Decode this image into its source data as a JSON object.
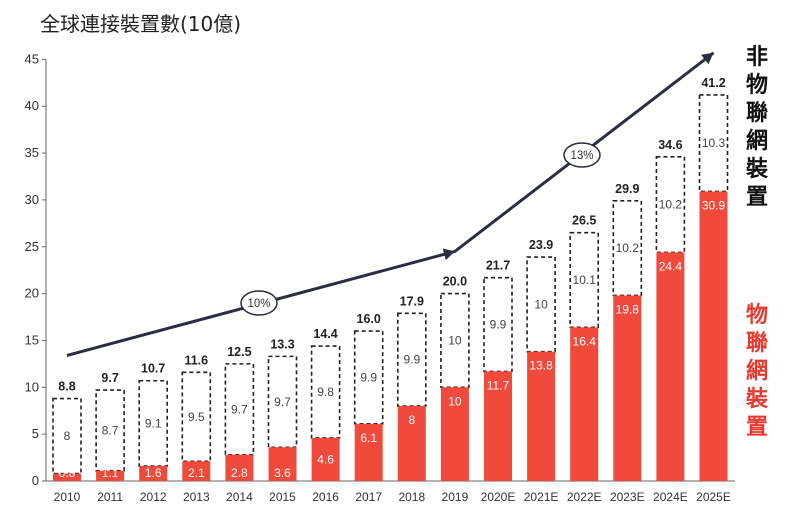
{
  "chart_data": {
    "type": "bar",
    "title": "全球連接裝置數(10億)",
    "categories": [
      "2010",
      "2011",
      "2012",
      "2013",
      "2014",
      "2015",
      "2016",
      "2017",
      "2018",
      "2019",
      "2020E",
      "2021E",
      "2022E",
      "2023E",
      "2024E",
      "2025E"
    ],
    "series": [
      {
        "name": "物聯網裝置",
        "color": "#f04a3c",
        "values": [
          0.8,
          1.1,
          1.6,
          2.1,
          2.8,
          3.6,
          4.6,
          6.1,
          8.0,
          10.0,
          11.7,
          13.8,
          16.4,
          19.8,
          24.4,
          30.9
        ]
      },
      {
        "name": "非物聯網裝置",
        "color": "#ffffff",
        "values": [
          8.0,
          8.7,
          9.1,
          9.5,
          9.7,
          9.7,
          9.8,
          9.9,
          9.9,
          10.0,
          9.9,
          10.0,
          10.1,
          10.2,
          10.2,
          10.3
        ]
      }
    ],
    "totals": [
      8.8,
      9.7,
      10.7,
      11.6,
      12.5,
      13.3,
      14.4,
      16.0,
      17.9,
      20.0,
      21.7,
      23.9,
      26.5,
      29.9,
      34.6,
      41.2
    ],
    "ylim": [
      0,
      45
    ],
    "yticks": [
      0,
      5,
      10,
      15,
      20,
      25,
      30,
      35,
      40,
      45
    ],
    "trend_labels": [
      "10%",
      "13%"
    ],
    "legend": {
      "non_iot": "非物聯網裝置",
      "iot": "物聯網裝置"
    },
    "grid": false
  }
}
